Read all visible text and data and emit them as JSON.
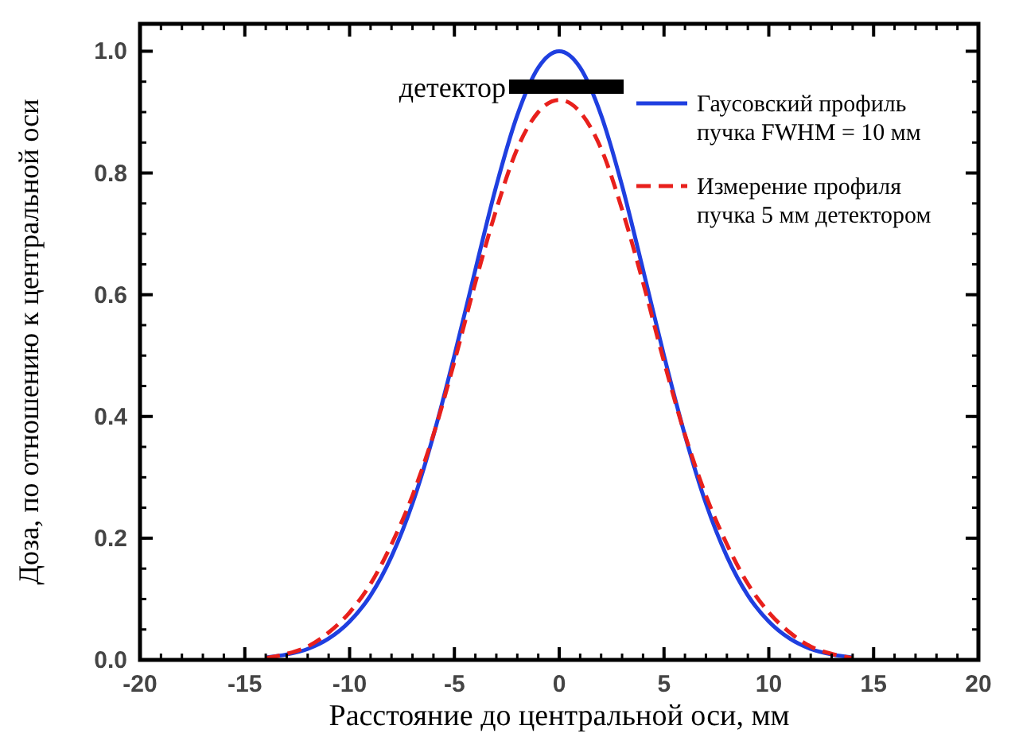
{
  "chart_data": {
    "type": "line",
    "xlabel": "Расстояние до центральной оси, мм",
    "ylabel": "Доза,  по отношению к центральной оси",
    "x": [
      -14,
      -13,
      -12,
      -11,
      -10,
      -9,
      -8,
      -7,
      -6,
      -5,
      -4,
      -3,
      -2,
      -1,
      0,
      1,
      2,
      3,
      4,
      5,
      6,
      7,
      8,
      9,
      10,
      11,
      12,
      13,
      14
    ],
    "series": [
      {
        "name": "Гаусовский профиль пучка FWHM = 10 мм",
        "color": "#1f3fe0",
        "line_style": "solid",
        "values": [
          0.004,
          0.009,
          0.018,
          0.035,
          0.063,
          0.106,
          0.17,
          0.257,
          0.369,
          0.5,
          0.641,
          0.779,
          0.895,
          0.973,
          1.0,
          0.973,
          0.895,
          0.779,
          0.641,
          0.5,
          0.369,
          0.257,
          0.17,
          0.106,
          0.063,
          0.035,
          0.018,
          0.009,
          0.004
        ]
      },
      {
        "name": "Измерение профиля пучка 5 мм детектором",
        "color": "#e8201c",
        "line_style": "dashed",
        "values": [
          0.003,
          0.01,
          0.022,
          0.045,
          0.078,
          0.125,
          0.19,
          0.27,
          0.37,
          0.49,
          0.62,
          0.74,
          0.84,
          0.9,
          0.92,
          0.9,
          0.84,
          0.74,
          0.62,
          0.49,
          0.37,
          0.27,
          0.19,
          0.125,
          0.078,
          0.045,
          0.022,
          0.01,
          0.003
        ]
      }
    ],
    "xlim": [
      -20,
      20
    ],
    "xticks": [
      -20,
      -15,
      -10,
      -5,
      0,
      5,
      10,
      15,
      20
    ],
    "ylim": [
      0,
      1.045
    ],
    "yticks": [
      {
        "value": 0,
        "label": "0.0"
      },
      {
        "value": 0.2,
        "label": "0.2"
      },
      {
        "value": 0.4,
        "label": "0.4"
      },
      {
        "value": 0.6,
        "label": "0.6"
      },
      {
        "value": 0.8,
        "label": "0.8"
      },
      {
        "value": 1,
        "label": "1.0"
      }
    ],
    "annotations": [
      "детектор"
    ],
    "grid": false,
    "legend": "top right"
  }
}
